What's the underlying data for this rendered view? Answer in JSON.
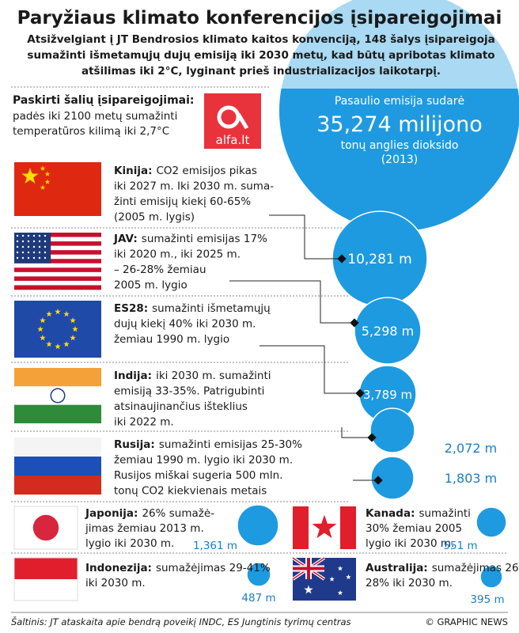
{
  "title": "Paryžiaus klimato konferencijos įsipareigojimai",
  "subtitle": [
    "Atsižvelgiant į JT Bendrosios klimato kaitos konvenciją, 148 šalys įsipareigoja",
    "sumažinti išmetamųjų dujų emisiją iki 2030 metų, kad būtų apribotas klimato",
    "atšilimas iki 2°C, lyginant prieš industrializacijos laikotarpį."
  ],
  "header": {
    "title": "Paskirti šalių įsipareigojimai:",
    "lines": [
      "padės iki 2100 metų sumažinti",
      "temperatūros kilimą iki 2,7°C"
    ]
  },
  "logo": "alfa.lt",
  "world": {
    "lines": [
      "Pasaulio emisija sudarė",
      "35,274 milijono",
      "tonų anglies dioksido",
      "(2013)"
    ]
  },
  "countries": [
    {
      "name": "Kinija:",
      "lines": [
        "CO2 emisijos pikas",
        "iki 2027 m. Iki 2030 m. suma-",
        "žinti emisijų kiekį 60-65%",
        "(2005 m. lygis)"
      ],
      "value": "10,281 m"
    },
    {
      "name": "JAV:",
      "lines": [
        "sumažinti emisijas 17%",
        "iki 2020 m., iki 2025 m.",
        "– 26-28% žemiau",
        "2005 m. lygio"
      ],
      "value": "5,298 m"
    },
    {
      "name": "ES28:",
      "lines": [
        "sumažinti išmetamųjų",
        "dujų kiekį 40% iki 2030 m.",
        "žemiau 1990 m. lygio"
      ],
      "value": "3,789 m"
    },
    {
      "name": "Indija:",
      "lines": [
        "iki 2030 m. sumažinti",
        "emisiją 33-35%. Patrigubinti",
        "atsinaujinančius išteklius",
        "iki 2022 m."
      ],
      "value": "2,072 m"
    },
    {
      "name": "Rusija:",
      "lines": [
        "sumažinti emisijas 25-30%",
        "žemiau 1990 m. lygio iki 2030 m.",
        "Rusijos miškai sugeria 500 mln.",
        "tonų CO2 kiekvienais metais"
      ],
      "value": "1,803 m"
    },
    {
      "name": "Japonija:",
      "lines": [
        "26% sumažė-",
        "jimas žemiau 2013 m.",
        "lygio iki 2030 m."
      ],
      "value": "1,361 m"
    },
    {
      "name": "Kanada:",
      "lines": [
        "sumažinti",
        "30% žemiau 2005",
        "lygio iki 2030 m."
      ],
      "value": "551 m"
    },
    {
      "name": "Indonezija:",
      "lines": [
        "sumažėjimas 29-41%",
        "iki 2030 m."
      ],
      "value": "487 m"
    },
    {
      "name": "Australija:",
      "lines": [
        "sumažėjimas 26-",
        "28% iki 2030 m."
      ],
      "value": "395 m"
    }
  ],
  "source": "Šaltinis: JT ataskaita apie bendrą poveikį INDC, ES Jungtinis tyrimų centras",
  "credit": "© GRAPHIC NEWS"
}
